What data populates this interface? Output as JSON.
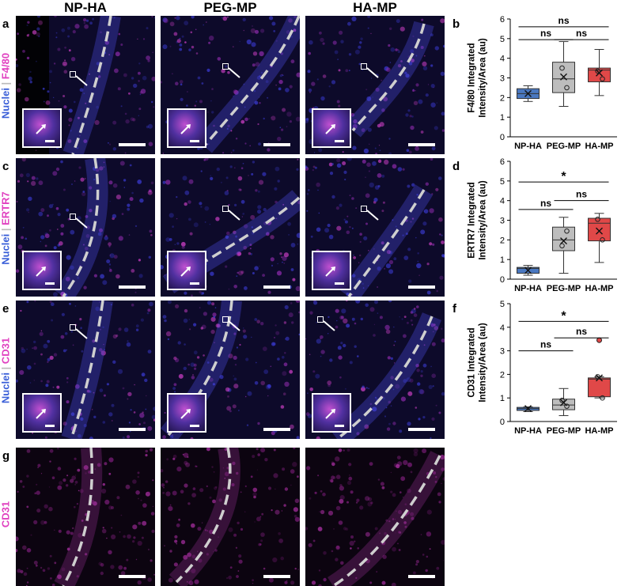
{
  "columns": [
    "NP-HA",
    "PEG-MP",
    "HA-MP"
  ],
  "panel_letters": {
    "a": "a",
    "b": "b",
    "c": "c",
    "d": "d",
    "e": "e",
    "f": "f",
    "g": "g"
  },
  "row_labels": {
    "a": {
      "nuclei": "Nuclei",
      "sep": " | ",
      "marker": "F4/80"
    },
    "c": {
      "nuclei": "Nuclei",
      "sep": " | ",
      "marker": "ERTR7"
    },
    "e": {
      "nuclei": "Nuclei",
      "sep": " | ",
      "marker": "CD31"
    },
    "g": {
      "marker": "CD31"
    }
  },
  "colors": {
    "nuclei": "#3a5fd8",
    "marker": "#e040c0",
    "np_ha": "#4a78c0",
    "peg_mp": "#bdbdbd",
    "ha_mp": "#e04848"
  },
  "chart_data": [
    {
      "type": "box",
      "panel": "b",
      "ylabel": "F4/80 Integrated Intensity/Area (au)",
      "ylabel_lines": [
        "F4/80 Integrated",
        "Intensity/Area (au)"
      ],
      "ylim": [
        0,
        6
      ],
      "yticks": [
        0,
        1,
        2,
        3,
        4,
        5,
        6
      ],
      "categories": [
        "NP-HA",
        "PEG-MP",
        "HA-MP"
      ],
      "boxes": [
        {
          "name": "NP-HA",
          "min": 1.8,
          "q1": 1.95,
          "median": 2.2,
          "q3": 2.45,
          "max": 2.6,
          "mean": 2.2,
          "points": []
        },
        {
          "name": "PEG-MP",
          "min": 1.55,
          "q1": 2.25,
          "median": 2.95,
          "q3": 3.8,
          "max": 4.85,
          "mean": 3.05,
          "points": [
            2.5,
            3.5
          ]
        },
        {
          "name": "HA-MP",
          "min": 2.1,
          "q1": 2.8,
          "median": 3.4,
          "q3": 3.5,
          "max": 4.45,
          "mean": 3.25,
          "points": [
            2.95,
            3.35
          ]
        }
      ],
      "significance": [
        {
          "from": 0,
          "to": 2,
          "label": "ns",
          "y": 5.6
        },
        {
          "from": 0,
          "to": 1,
          "label": "ns",
          "y": 4.95
        },
        {
          "from": 1,
          "to": 2,
          "label": "ns",
          "y": 4.95
        }
      ]
    },
    {
      "type": "box",
      "panel": "d",
      "ylabel": "ERTR7 Integrated Intensity/Area (au)",
      "ylabel_lines": [
        "ERTR7 Integrated",
        "Intensity/Area (au)"
      ],
      "ylim": [
        0,
        6
      ],
      "yticks": [
        0,
        1,
        2,
        3,
        4,
        5,
        6
      ],
      "categories": [
        "NP-HA",
        "PEG-MP",
        "HA-MP"
      ],
      "boxes": [
        {
          "name": "NP-HA",
          "min": 0.2,
          "q1": 0.3,
          "median": 0.55,
          "q3": 0.6,
          "max": 0.7,
          "mean": 0.45,
          "points": []
        },
        {
          "name": "PEG-MP",
          "min": 0.3,
          "q1": 1.45,
          "median": 2.0,
          "q3": 2.65,
          "max": 3.15,
          "mean": 1.95,
          "points": [
            2.45,
            1.7
          ]
        },
        {
          "name": "HA-MP",
          "min": 0.85,
          "q1": 1.95,
          "median": 2.85,
          "q3": 3.1,
          "max": 3.35,
          "mean": 2.45,
          "points": [
            2.0,
            3.05
          ]
        }
      ],
      "significance": [
        {
          "from": 0,
          "to": 2,
          "label": "*",
          "y": 4.95
        },
        {
          "from": 0,
          "to": 1,
          "label": "ns",
          "y": 3.55
        },
        {
          "from": 1,
          "to": 2,
          "label": "ns",
          "y": 4.0
        }
      ]
    },
    {
      "type": "box",
      "panel": "f",
      "ylabel": "CD31 Integrated Intensity/Area (au)",
      "ylabel_lines": [
        "CD31 Integrated",
        "Intensity/Area (au)"
      ],
      "ylim": [
        0,
        5
      ],
      "yticks": [
        0,
        1,
        2,
        3,
        4,
        5
      ],
      "categories": [
        "NP-HA",
        "PEG-MP",
        "HA-MP"
      ],
      "boxes": [
        {
          "name": "NP-HA",
          "min": 0.42,
          "q1": 0.47,
          "median": 0.55,
          "q3": 0.6,
          "max": 0.62,
          "mean": 0.55,
          "points": []
        },
        {
          "name": "PEG-MP",
          "min": 0.25,
          "q1": 0.5,
          "median": 0.7,
          "q3": 0.95,
          "max": 1.4,
          "mean": 0.8,
          "points": [
            0.65,
            0.9
          ]
        },
        {
          "name": "HA-MP",
          "min": 1.0,
          "q1": 1.05,
          "median": 1.8,
          "q3": 1.85,
          "max": 1.9,
          "mean": 1.85,
          "points": [
            1.0,
            1.9
          ]
        }
      ],
      "outliers": [
        {
          "box": 2,
          "value": 3.45
        }
      ],
      "significance": [
        {
          "from": 0,
          "to": 2,
          "label": "*",
          "y": 4.25
        },
        {
          "from": 0,
          "to": 1,
          "label": "ns",
          "y": 3.0
        },
        {
          "from": 1,
          "to": 2,
          "label": "ns",
          "y": 3.55
        }
      ]
    }
  ]
}
